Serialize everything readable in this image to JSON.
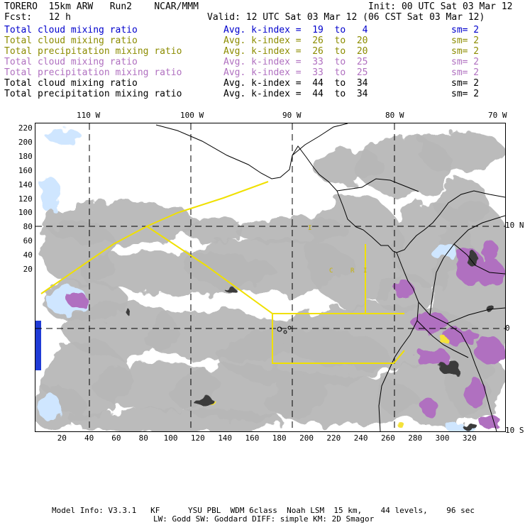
{
  "header": {
    "model": "TORERO  15km ARW   Run2    NCAR/MMM",
    "init": "Init: 00 UTC Sat 03 Mar 12",
    "fcst": "Fcst:   12 h",
    "valid": "Valid: 12 UTC Sat 03 Mar 12 (06 CST Sat 03 Mar 12)"
  },
  "legend": [
    {
      "field": "Total cloud mixing ratio",
      "kindex": "Avg. k-index =  19  to   4",
      "sm": "sm= 2",
      "color": "#0000cc"
    },
    {
      "field": "Total cloud mixing ratio",
      "kindex": "Avg. k-index =  26  to  20",
      "sm": "sm= 2",
      "color": "#8c8c00"
    },
    {
      "field": "Total precipitation mixing ratio",
      "kindex": "Avg. k-index =  26  to  20",
      "sm": "sm= 2",
      "color": "#8c8c00"
    },
    {
      "field": "Total cloud mixing ratio",
      "kindex": "Avg. k-index =  33  to  25",
      "sm": "sm= 2",
      "color": "#b070c0"
    },
    {
      "field": "Total precipitation mixing ratio",
      "kindex": "Avg. k-index =  33  to  25",
      "sm": "sm= 2",
      "color": "#b070c0"
    },
    {
      "field": "Total cloud mixing ratio",
      "kindex": "Avg. k-index =  44  to  34",
      "sm": "sm= 2",
      "color": "#000000"
    },
    {
      "field": "Total precipitation mixing ratio",
      "kindex": "Avg. k-index =  44  to  34",
      "sm": "sm= 2",
      "color": "#000000"
    }
  ],
  "map": {
    "lon_labels": [
      "110 W",
      "100 W",
      "90 W",
      "80 W",
      "70 W"
    ],
    "lat_labels": [
      "10 N",
      "0",
      "10 S"
    ],
    "x_ticks": [
      "20",
      "40",
      "60",
      "80",
      "100",
      "120",
      "140",
      "160",
      "180",
      "200",
      "220",
      "240",
      "260",
      "280",
      "300",
      "320"
    ],
    "y_ticks": [
      "220",
      "200",
      "180",
      "160",
      "140",
      "120",
      "100",
      "80",
      "60",
      "40",
      "20"
    ],
    "colors": {
      "cloud_gray": "#b0b0b0",
      "cloud_dark": "#3a3a3a",
      "light_blue": "#cfe6ff",
      "blue": "#1f3bd6",
      "purple": "#b070c0",
      "yellow": "#f4e23a",
      "flight_track": "#f0e000"
    }
  },
  "footer": {
    "line1": "Model Info: V3.3.1   KF      YSU PBL  WDM 6class  Noah LSM  15 km,    44 levels,    96 sec",
    "line2": "LW: Godd SW: Goddard DIFF: simple KM: 2D Smagor"
  }
}
